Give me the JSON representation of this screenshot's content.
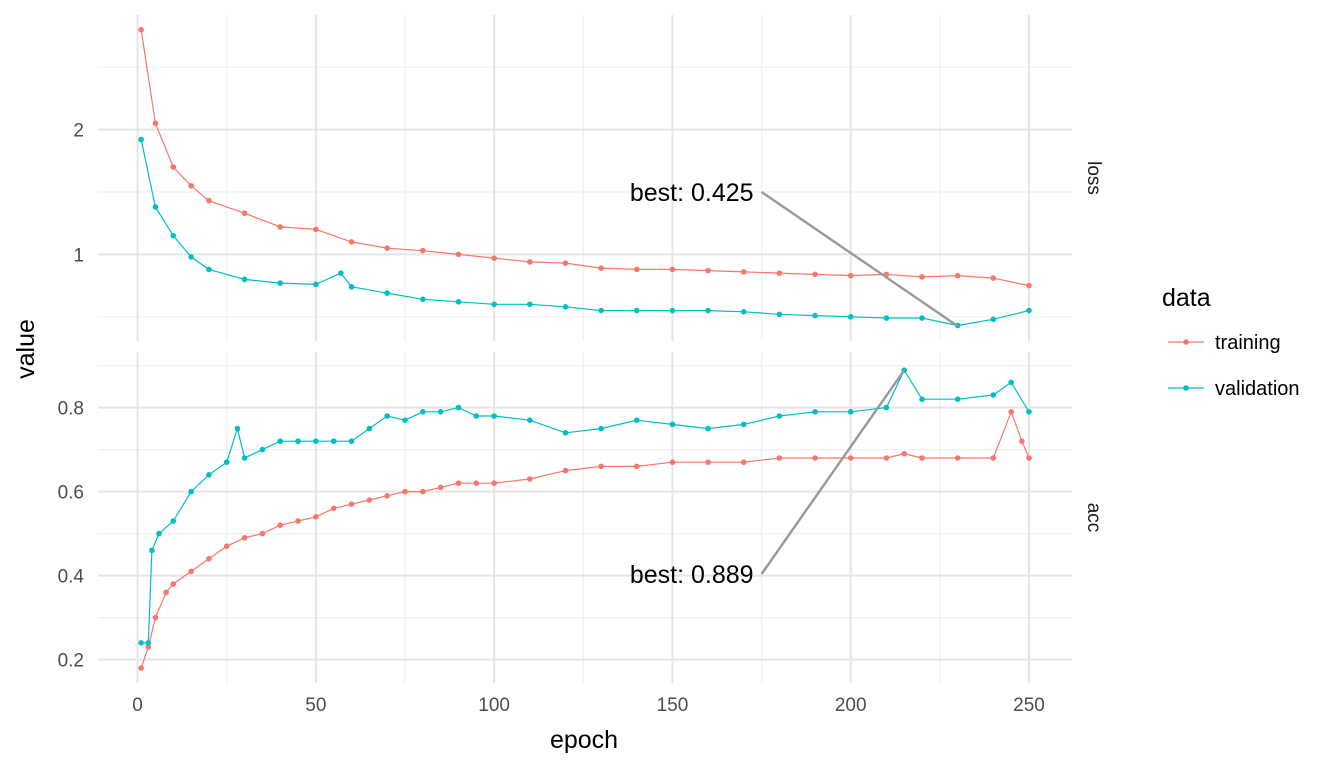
{
  "chart_data": {
    "type": "line",
    "xlabel": "epoch",
    "ylabel": "value",
    "xlim": [
      0,
      250
    ],
    "x_ticks": [
      "0",
      "50",
      "100",
      "150",
      "200",
      "250"
    ],
    "grid": true,
    "legend": {
      "title": "data",
      "placement": "right",
      "entries": [
        {
          "label": "training",
          "color": "#F8766D"
        },
        {
          "label": "validation",
          "color": "#00BFC4"
        }
      ]
    },
    "panels": [
      {
        "strip": "loss",
        "ylim": [
          0.45,
          2.85
        ],
        "y_ticks": [
          1,
          2
        ],
        "y_tick_labels": [
          "1",
          "2"
        ],
        "annotation": {
          "text": "best: 0.425",
          "x": 230,
          "y": 0.425
        },
        "series": [
          {
            "name": "training",
            "color": "#F8766D",
            "x": [
              1,
              5,
              10,
              15,
              20,
              30,
              40,
              50,
              60,
              70,
              80,
              90,
              100,
              110,
              120,
              130,
              140,
              150,
              160,
              170,
              180,
              190,
              200,
              210,
              220,
              230,
              240,
              250
            ],
            "y": [
              2.8,
              2.05,
              1.7,
              1.55,
              1.43,
              1.33,
              1.22,
              1.2,
              1.1,
              1.05,
              1.03,
              1.0,
              0.97,
              0.94,
              0.93,
              0.89,
              0.88,
              0.88,
              0.87,
              0.86,
              0.85,
              0.84,
              0.83,
              0.84,
              0.82,
              0.83,
              0.81,
              0.75
            ]
          },
          {
            "name": "validation",
            "color": "#00BFC4",
            "x": [
              1,
              5,
              10,
              15,
              20,
              30,
              40,
              50,
              57,
              60,
              70,
              80,
              90,
              100,
              110,
              120,
              130,
              140,
              150,
              160,
              170,
              180,
              190,
              200,
              210,
              220,
              230,
              240,
              250
            ],
            "y": [
              1.92,
              1.38,
              1.15,
              0.98,
              0.88,
              0.8,
              0.77,
              0.76,
              0.85,
              0.74,
              0.69,
              0.64,
              0.62,
              0.6,
              0.6,
              0.58,
              0.55,
              0.55,
              0.55,
              0.55,
              0.54,
              0.52,
              0.51,
              0.5,
              0.49,
              0.49,
              0.43,
              0.48,
              0.55
            ]
          }
        ]
      },
      {
        "strip": "acc",
        "ylim": [
          0.16,
          0.91
        ],
        "y_ticks": [
          0.2,
          0.4,
          0.6,
          0.8
        ],
        "y_tick_labels": [
          "0.2",
          "0.4",
          "0.6",
          "0.8"
        ],
        "annotation": {
          "text": "best: 0.889",
          "x": 215,
          "y": 0.889
        },
        "series": [
          {
            "name": "training",
            "color": "#F8766D",
            "x": [
              1,
              3,
              5,
              8,
              10,
              15,
              20,
              25,
              30,
              35,
              40,
              45,
              50,
              55,
              60,
              65,
              70,
              75,
              80,
              85,
              90,
              95,
              100,
              110,
              120,
              130,
              140,
              150,
              160,
              170,
              180,
              190,
              200,
              210,
              215,
              220,
              230,
              240,
              245,
              248,
              250
            ],
            "y": [
              0.18,
              0.23,
              0.3,
              0.36,
              0.38,
              0.41,
              0.44,
              0.47,
              0.49,
              0.5,
              0.52,
              0.53,
              0.54,
              0.56,
              0.57,
              0.58,
              0.59,
              0.6,
              0.6,
              0.61,
              0.62,
              0.62,
              0.62,
              0.63,
              0.65,
              0.66,
              0.66,
              0.67,
              0.67,
              0.67,
              0.68,
              0.68,
              0.68,
              0.68,
              0.69,
              0.68,
              0.68,
              0.68,
              0.79,
              0.72,
              0.68
            ]
          },
          {
            "name": "validation",
            "color": "#00BFC4",
            "x": [
              1,
              3,
              4,
              6,
              10,
              15,
              20,
              25,
              28,
              30,
              35,
              40,
              45,
              50,
              55,
              60,
              65,
              70,
              75,
              80,
              85,
              90,
              95,
              100,
              110,
              120,
              130,
              140,
              150,
              160,
              170,
              180,
              190,
              200,
              210,
              215,
              220,
              230,
              240,
              245,
              250
            ],
            "y": [
              0.24,
              0.24,
              0.46,
              0.5,
              0.53,
              0.6,
              0.64,
              0.67,
              0.75,
              0.68,
              0.7,
              0.72,
              0.72,
              0.72,
              0.72,
              0.72,
              0.75,
              0.78,
              0.77,
              0.79,
              0.79,
              0.8,
              0.78,
              0.78,
              0.77,
              0.74,
              0.75,
              0.77,
              0.76,
              0.75,
              0.76,
              0.78,
              0.79,
              0.79,
              0.8,
              0.889,
              0.82,
              0.82,
              0.83,
              0.86,
              0.79
            ]
          }
        ]
      }
    ]
  }
}
